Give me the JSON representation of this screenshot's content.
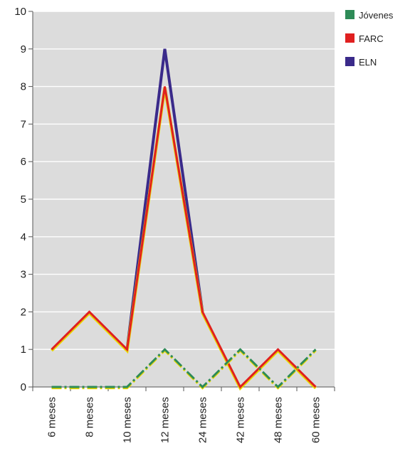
{
  "chart_data": {
    "type": "line",
    "categories": [
      "6 meses",
      "8 meses",
      "10 meses",
      "12 meses",
      "24 meses",
      "42 meses",
      "48 meses",
      "60 meses"
    ],
    "ylim": [
      0,
      10
    ],
    "yticks": [
      0,
      1,
      2,
      3,
      4,
      5,
      6,
      7,
      8,
      9,
      10
    ],
    "grid": true,
    "legend_position": "top-right",
    "series": [
      {
        "name": "Jóvenes",
        "values": [
          0,
          0,
          0,
          1,
          0,
          1,
          0,
          1
        ],
        "color": "#2e8b57",
        "accent_color": "#e8d800",
        "style": "dash-dot"
      },
      {
        "name": "FARC",
        "values": [
          1,
          2,
          1,
          8,
          2,
          0,
          1,
          0
        ],
        "color": "#e02020",
        "accent_color": "#e8d800",
        "style": "solid"
      },
      {
        "name": "ELN",
        "values": [
          null,
          null,
          1,
          9,
          2,
          null,
          null,
          null
        ],
        "color": "#3a2a8a",
        "style": "solid"
      }
    ]
  }
}
